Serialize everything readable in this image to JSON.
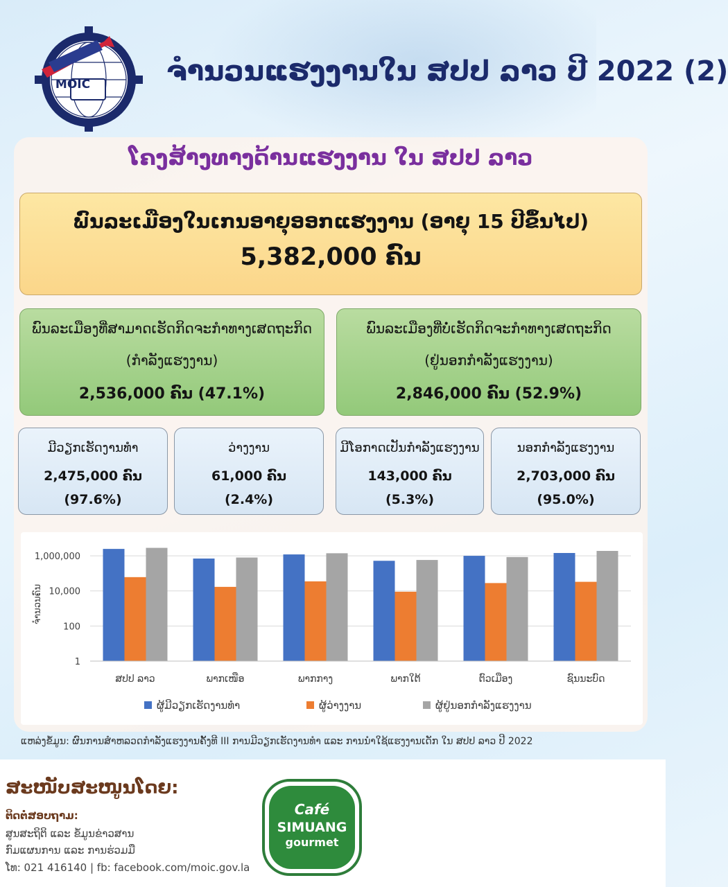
{
  "header": {
    "logo_text": "MOIC",
    "title": "ຈຳນວນແຮງງານໃນ ສປປ ລາວ ປີ 2022 (2)"
  },
  "subtitle": "ໂຄງສ້າງທາງດ້ານແຮງງານ ໃນ ສປປ ລາວ",
  "top_box": {
    "line1": "ພົນລະເມືອງໃນເກນອາຍຸອອກແຮງງານ (ອາຍຸ 15 ປີຂຶ້ນໄປ)",
    "line2": "5,382,000 ຄົນ"
  },
  "green_boxes": [
    {
      "line1": "ພົນລະເມືອງທີ່ສາມາດເຮັດກິດຈະກຳທາງເສດຖະກິດ",
      "line2": "(ກຳລັງແຮງງານ)",
      "line3": "2,536,000 ຄົນ (47.1%)"
    },
    {
      "line1": "ພົນລະເມືອງທີ່ບໍ່ເຮັດກິດຈະກຳທາງເສດຖະກິດ",
      "line2": "(ຢູ່ນອກກຳລັງແຮງງານ)",
      "line3": "2,846,000 ຄົນ (52.9%)"
    }
  ],
  "blue_boxes": [
    {
      "line1": "ມີວຽກເຮັດງານທຳ",
      "line2": "2,475,000 ຄົນ",
      "line3": "(97.6%)"
    },
    {
      "line1": "ວ່າງງານ",
      "line2": "61,000 ຄົນ",
      "line3": "(2.4%)"
    },
    {
      "line1": "ມີໂອກາດເປັນກຳລັງແຮງງານ",
      "line2": "143,000 ຄົນ",
      "line3": "(5.3%)"
    },
    {
      "line1": "ນອກກຳລັງແຮງງານ",
      "line2": "2,703,000  ຄົນ",
      "line3": "(95.0%)"
    }
  ],
  "chart_data": {
    "type": "bar",
    "scale": "log",
    "ylabel": "ຈຳນວນຄົນ",
    "ylim": [
      1,
      3000000
    ],
    "yticks": [
      1,
      100,
      10000,
      1000000
    ],
    "ytick_labels": [
      "1",
      "100",
      "10,000",
      "1,000,000"
    ],
    "categories": [
      "ສປປ ລາວ",
      "ພາກເໜືອ",
      "ພາກກາງ",
      "ພາກໃຕ້",
      "ຕົວເມືອງ",
      "ຊົນນະບົດ"
    ],
    "series": [
      {
        "name": "ຜູ້ມີວຽກເຮັດງານທຳ",
        "color": "#4472c4",
        "values": [
          2475000,
          700000,
          1200000,
          520000,
          1000000,
          1450000
        ]
      },
      {
        "name": "ຜູ້ວ່າງງານ",
        "color": "#ed7d31",
        "values": [
          61000,
          17000,
          35000,
          9000,
          28000,
          33000
        ]
      },
      {
        "name": "ຜູ້ຢູ່ນອກກຳລັງແຮງງານ",
        "color": "#a5a5a5",
        "values": [
          2846000,
          800000,
          1400000,
          580000,
          850000,
          1900000
        ]
      }
    ],
    "legend": "bottom",
    "grid": true
  },
  "source": "ແຫລ່ງຂໍ້ມູນ: ຜົນການສຳຫລວດກຳລັງແຮງງານຄັ້ງທີ III ການມີວຽກເຮັດງານທຳ ແລະ ການນຳໃຊ້ແຮງງານເດັກ ໃນ ສປປ ລາວ ປີ 2022",
  "footer": {
    "support_title": "ສະໜັບສະໜູນໂດຍ:",
    "contact_label": "ຕິດຕໍ່ສອບຖາມ:",
    "contact_line1": "ສູນສະຖິຕິ ແລະ ຂໍ້ມູນຂ່າວສານ",
    "contact_line2": "ກົມແຜນການ ແລະ ການຮ່ວມມື",
    "contact_line3": "ໂທ: 021 416140  |  fb: facebook.com/moic.gov.la",
    "cafe_line1": "Café",
    "cafe_line2": "SIMUANG",
    "cafe_line3": "gourmet"
  }
}
